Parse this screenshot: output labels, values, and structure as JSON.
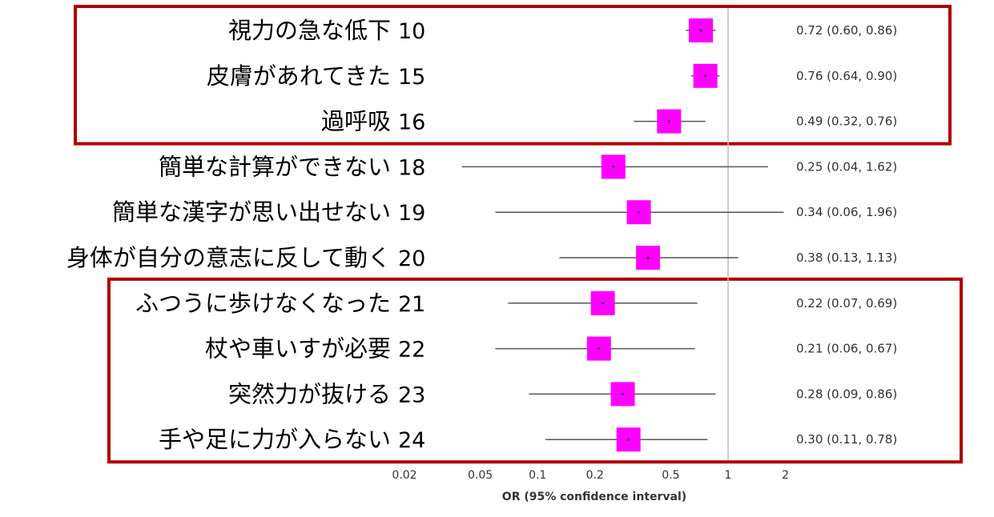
{
  "chart_data": {
    "type": "forest",
    "xlabel": "OR (95% confidence interval)",
    "x_scale": "log",
    "xlim": [
      0.02,
      2
    ],
    "reference_line": 1,
    "x_ticks": [
      0.02,
      0.05,
      0.1,
      0.2,
      0.5,
      1,
      2
    ],
    "x_tick_labels": [
      "0.02",
      "0.05",
      "0.1",
      "0.2",
      "0.5",
      "1",
      "2"
    ],
    "marker_color": "#ff00ff",
    "highlight_color": "#b00000",
    "highlight_groups": [
      [
        0,
        2
      ],
      [
        6,
        9
      ]
    ],
    "rows": [
      {
        "label": "視力の急な低下",
        "num": "10",
        "or": 0.72,
        "lo": 0.6,
        "hi": 0.86,
        "ci_text": "0.72 (0.60, 0.86)"
      },
      {
        "label": "皮膚があれてきた",
        "num": "15",
        "or": 0.76,
        "lo": 0.64,
        "hi": 0.9,
        "ci_text": "0.76 (0.64, 0.90)"
      },
      {
        "label": "過呼吸",
        "num": "16",
        "or": 0.49,
        "lo": 0.32,
        "hi": 0.76,
        "ci_text": "0.49 (0.32, 0.76)"
      },
      {
        "label": "簡単な計算ができない",
        "num": "18",
        "or": 0.25,
        "lo": 0.04,
        "hi": 1.62,
        "ci_text": "0.25 (0.04, 1.62)"
      },
      {
        "label": "簡単な漢字が思い出せない",
        "num": "19",
        "or": 0.34,
        "lo": 0.06,
        "hi": 1.96,
        "ci_text": "0.34 (0.06, 1.96)"
      },
      {
        "label": "身体が自分の意志に反して動く",
        "num": "20",
        "or": 0.38,
        "lo": 0.13,
        "hi": 1.13,
        "ci_text": "0.38 (0.13, 1.13)"
      },
      {
        "label": "ふつうに歩けなくなった",
        "num": "21",
        "or": 0.22,
        "lo": 0.07,
        "hi": 0.69,
        "ci_text": "0.22 (0.07, 0.69)"
      },
      {
        "label": "杖や車いすが必要",
        "num": "22",
        "or": 0.21,
        "lo": 0.06,
        "hi": 0.67,
        "ci_text": "0.21 (0.06, 0.67)"
      },
      {
        "label": "突然力が抜ける",
        "num": "23",
        "or": 0.28,
        "lo": 0.09,
        "hi": 0.86,
        "ci_text": "0.28 (0.09, 0.86)"
      },
      {
        "label": "手や足に力が入らない",
        "num": "24",
        "or": 0.3,
        "lo": 0.11,
        "hi": 0.78,
        "ci_text": "0.30 (0.11, 0.78)"
      }
    ]
  }
}
